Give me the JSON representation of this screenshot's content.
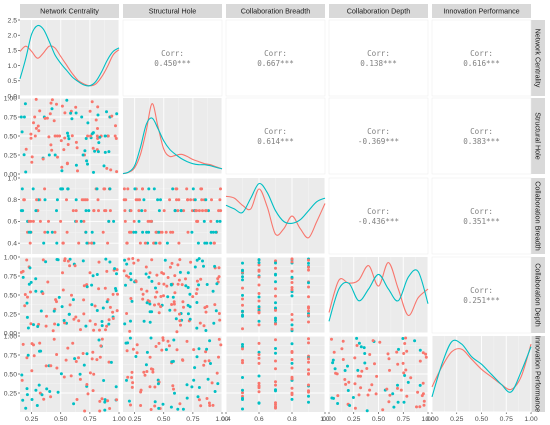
{
  "chart_data": {
    "type": "scatter",
    "chart_kind": "scatter-matrix",
    "variables": [
      "Network Centrality",
      "Structural Hole",
      "Collaboration Breadth",
      "Collaboration Depth",
      "Innovation Performance"
    ],
    "series_colors": [
      "#F8766D",
      "#00BFC4"
    ],
    "grid": true,
    "panel_background": "#EBEBEB",
    "strip_background": "#D9D9D9",
    "x_ranges": [
      [
        0.15,
        1.0
      ],
      [
        0.15,
        1.0
      ],
      [
        0.4,
        1.0
      ],
      [
        0.0,
        1.0
      ],
      [
        0.0,
        1.0
      ]
    ],
    "x_ticks": [
      [
        "0.25",
        "0.50",
        "0.75",
        "1.00"
      ],
      [
        "0.25",
        "0.50",
        "0.75",
        "1.00"
      ],
      [
        "0.4",
        "0.6",
        "0.8",
        "1.0"
      ],
      [
        "0.00",
        "0.25",
        "0.50",
        "0.75",
        "1.00"
      ],
      [
        "0.00",
        "0.25",
        "0.50",
        "0.75",
        "1.00"
      ]
    ],
    "diag_y_ranges": [
      [
        0,
        2.5
      ]
    ],
    "diag_y_ticks": [
      [
        "0.0",
        "0.5",
        "1.0",
        "1.5",
        "2.0",
        "2.5"
      ]
    ],
    "row_y_ticks": [
      [
        "0.0",
        "0.5",
        "1.0",
        "1.5",
        "2.0",
        "2.5"
      ],
      [
        "0.00",
        "0.25",
        "0.50",
        "0.75",
        "1.00"
      ],
      [
        "0.4",
        "0.6",
        "0.8",
        "1.0"
      ],
      [
        "0.00",
        "0.25",
        "0.50",
        "0.75",
        "1.00"
      ],
      [
        "0.25",
        "0.50",
        "0.75",
        "1.00"
      ]
    ],
    "row_y_ranges": [
      [
        0,
        2.5
      ],
      [
        0,
        1.0
      ],
      [
        0.3,
        1.0
      ],
      [
        0,
        1.0
      ],
      [
        0,
        1.0
      ]
    ],
    "correlations": [
      {
        "row": 0,
        "col": 1,
        "label": "Corr:",
        "value": "0.450***"
      },
      {
        "row": 0,
        "col": 2,
        "label": "Corr:",
        "value": "0.667***"
      },
      {
        "row": 0,
        "col": 3,
        "label": "Corr:",
        "value": "0.138***"
      },
      {
        "row": 0,
        "col": 4,
        "label": "Corr:",
        "value": "0.616***"
      },
      {
        "row": 1,
        "col": 2,
        "label": "Corr:",
        "value": "0.614***"
      },
      {
        "row": 1,
        "col": 3,
        "label": "Corr:",
        "value": "-0.369***"
      },
      {
        "row": 1,
        "col": 4,
        "label": "Corr:",
        "value": "0.383***"
      },
      {
        "row": 2,
        "col": 3,
        "label": "Corr:",
        "value": "-0.436***"
      },
      {
        "row": 2,
        "col": 4,
        "label": "Corr:",
        "value": "0.351***"
      },
      {
        "row": 3,
        "col": 4,
        "label": "Corr:",
        "value": "0.251***"
      }
    ],
    "density_curves": [
      {
        "var": 0,
        "red": {
          "x": [
            0.15,
            0.2,
            0.25,
            0.3,
            0.35,
            0.4,
            0.45,
            0.5,
            0.55,
            0.6,
            0.65,
            0.7,
            0.75,
            0.8,
            0.85,
            0.9,
            0.95,
            1.0
          ],
          "y": [
            1.3,
            1.45,
            1.3,
            1.1,
            1.25,
            1.45,
            1.4,
            1.15,
            0.9,
            0.65,
            0.45,
            0.35,
            0.3,
            0.35,
            0.55,
            0.85,
            1.2,
            1.35
          ]
        },
        "teal": {
          "x": [
            0.15,
            0.2,
            0.25,
            0.3,
            0.35,
            0.4,
            0.45,
            0.5,
            0.55,
            0.6,
            0.65,
            0.7,
            0.75,
            0.8,
            0.85,
            0.9,
            0.95,
            1.0
          ],
          "y": [
            0.5,
            1.1,
            1.8,
            2.05,
            1.95,
            1.6,
            1.2,
            0.95,
            0.75,
            0.55,
            0.42,
            0.32,
            0.3,
            0.42,
            0.7,
            1.05,
            1.3,
            1.4
          ]
        }
      },
      {
        "var": 1,
        "red": {
          "x": [
            0.15,
            0.2,
            0.25,
            0.3,
            0.35,
            0.4,
            0.45,
            0.5,
            0.55,
            0.6,
            0.65,
            0.7,
            0.75,
            0.8,
            0.85,
            0.9,
            0.95,
            1.0
          ],
          "y": [
            0.02,
            0.08,
            0.3,
            0.95,
            2.1,
            3.4,
            2.3,
            1.2,
            0.85,
            0.9,
            0.95,
            0.85,
            0.7,
            0.6,
            0.5,
            0.45,
            0.35,
            0.25
          ]
        },
        "teal": {
          "x": [
            0.15,
            0.2,
            0.25,
            0.3,
            0.35,
            0.4,
            0.45,
            0.5,
            0.55,
            0.6,
            0.65,
            0.7,
            0.75,
            0.8,
            0.85,
            0.9,
            0.95,
            1.0
          ],
          "y": [
            0.02,
            0.1,
            0.4,
            1.3,
            2.4,
            2.7,
            2.2,
            1.6,
            1.2,
            0.95,
            0.75,
            0.6,
            0.5,
            0.45,
            0.45,
            0.4,
            0.32,
            0.25
          ]
        }
      },
      {
        "var": 2,
        "red": {
          "x": [
            0.4,
            0.45,
            0.5,
            0.55,
            0.6,
            0.65,
            0.7,
            0.75,
            0.8,
            0.85,
            0.9,
            0.95,
            1.0
          ],
          "y": [
            1.6,
            1.55,
            1.35,
            1.25,
            1.8,
            1.3,
            0.55,
            0.7,
            1.05,
            0.7,
            0.45,
            0.9,
            1.4
          ]
        },
        "teal": {
          "x": [
            0.4,
            0.45,
            0.5,
            0.55,
            0.6,
            0.65,
            0.7,
            0.75,
            0.8,
            0.85,
            0.9,
            0.95,
            1.0
          ],
          "y": [
            1.35,
            1.25,
            1.15,
            1.55,
            1.95,
            1.7,
            1.2,
            0.9,
            0.85,
            0.95,
            1.2,
            1.45,
            1.55
          ]
        }
      },
      {
        "var": 3,
        "red": {
          "x": [
            0.0,
            0.1,
            0.2,
            0.3,
            0.4,
            0.5,
            0.6,
            0.7,
            0.8,
            0.9,
            1.0
          ],
          "y": [
            0.35,
            0.9,
            0.85,
            0.9,
            1.15,
            0.8,
            1.2,
            0.75,
            0.3,
            0.6,
            0.75
          ]
        },
        "teal": {
          "x": [
            0.0,
            0.1,
            0.2,
            0.3,
            0.4,
            0.5,
            0.6,
            0.7,
            0.8,
            0.9,
            1.0
          ],
          "y": [
            0.2,
            0.75,
            0.85,
            0.55,
            0.75,
            1.0,
            0.75,
            0.55,
            0.95,
            1.05,
            0.5
          ]
        }
      },
      {
        "var": 4,
        "red": {
          "x": [
            0.0,
            0.1,
            0.2,
            0.3,
            0.4,
            0.5,
            0.6,
            0.7,
            0.8,
            0.9,
            1.0
          ],
          "y": [
            0.5,
            0.9,
            1.2,
            1.25,
            1.05,
            0.85,
            0.7,
            0.55,
            0.45,
            0.7,
            1.35
          ]
        },
        "teal": {
          "x": [
            0.0,
            0.1,
            0.2,
            0.3,
            0.4,
            0.5,
            0.6,
            0.7,
            0.8,
            0.9,
            1.0
          ],
          "y": [
            0.3,
            0.95,
            1.4,
            1.35,
            1.1,
            0.95,
            0.75,
            0.55,
            0.4,
            0.8,
            1.3
          ]
        }
      }
    ]
  }
}
